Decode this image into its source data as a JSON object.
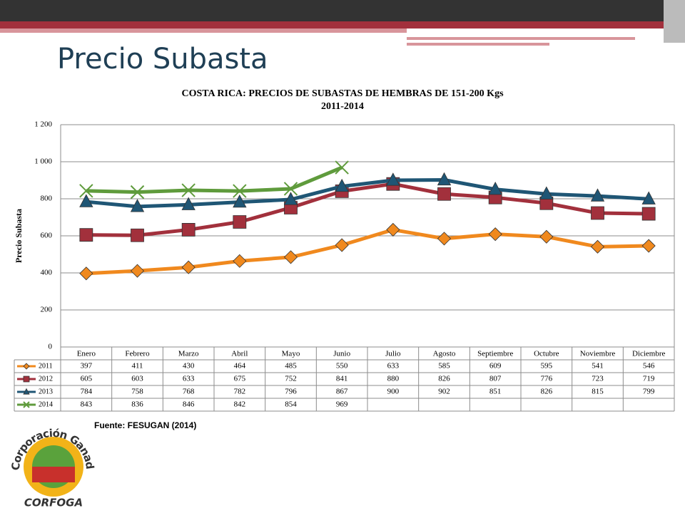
{
  "slide_title": "Precio Subasta",
  "chart_data": {
    "type": "line",
    "title": [
      "COSTA RICA: PRECIOS DE SUBASTAS DE HEMBRAS DE 151-200 Kgs",
      "2011-2014"
    ],
    "y_label": "Precio Subasta",
    "categories": [
      "Enero",
      "Febrero",
      "Marzo",
      "Abril",
      "Mayo",
      "Junio",
      "Julio",
      "Agosto",
      "Septiembre",
      "Octubre",
      "Noviembre",
      "Diciembre"
    ],
    "series": [
      {
        "name": "2011",
        "color": "#f0891e",
        "marker": "diamond",
        "values": [
          397,
          411,
          430,
          464,
          485,
          550,
          633,
          585,
          609,
          595,
          541,
          546
        ]
      },
      {
        "name": "2012",
        "color": "#a2303c",
        "marker": "square",
        "values": [
          605,
          603,
          633,
          675,
          752,
          841,
          880,
          826,
          807,
          776,
          723,
          719
        ]
      },
      {
        "name": "2013",
        "color": "#1f5675",
        "marker": "triangle",
        "values": [
          784,
          758,
          768,
          782,
          796,
          867,
          900,
          902,
          851,
          826,
          815,
          799
        ]
      },
      {
        "name": "2014",
        "color": "#5f9b3c",
        "marker": "x",
        "values": [
          843,
          836,
          846,
          842,
          854,
          969,
          null,
          null,
          null,
          null,
          null,
          null
        ]
      }
    ],
    "ylim": [
      0,
      1200
    ],
    "yticks": [
      0,
      200,
      400,
      600,
      800,
      {
        "value": 1000,
        "label": "1 000"
      },
      {
        "value": 1200,
        "label": "1 200"
      }
    ],
    "grid": true
  },
  "source": "Fuente: FESUGAN (2014)",
  "logo": {
    "top": "Corporación Ganadera",
    "bottom": "CORFOGA"
  }
}
